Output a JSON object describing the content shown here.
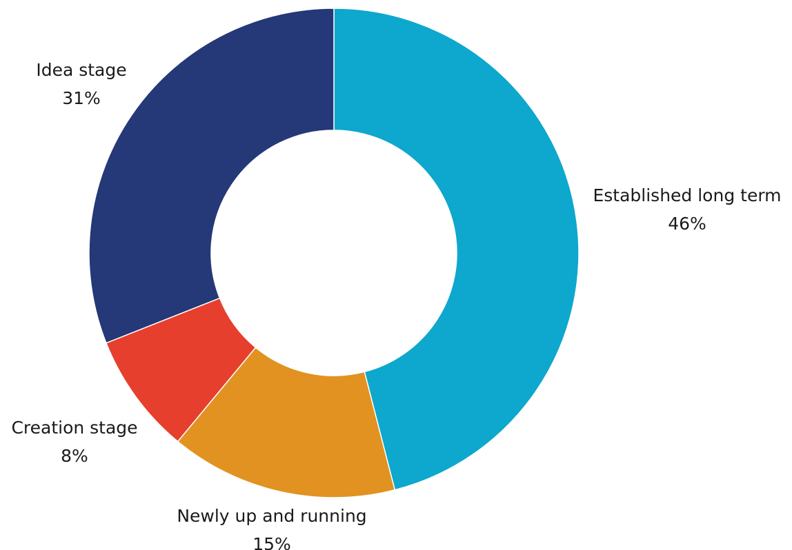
{
  "chart_data": {
    "type": "pie",
    "donut": true,
    "title": "",
    "legend": "none",
    "slices": [
      {
        "label": "Established long term",
        "value": 46,
        "value_label": "46%",
        "color": "#0ea7cd"
      },
      {
        "label": "Newly up and running",
        "value": 15,
        "value_label": "15%",
        "color": "#e19220"
      },
      {
        "label": "Creation stage",
        "value": 8,
        "value_label": "8%",
        "color": "#e63f2d"
      },
      {
        "label": "Idea stage",
        "value": 31,
        "value_label": "31%",
        "color": "#253877"
      }
    ]
  }
}
